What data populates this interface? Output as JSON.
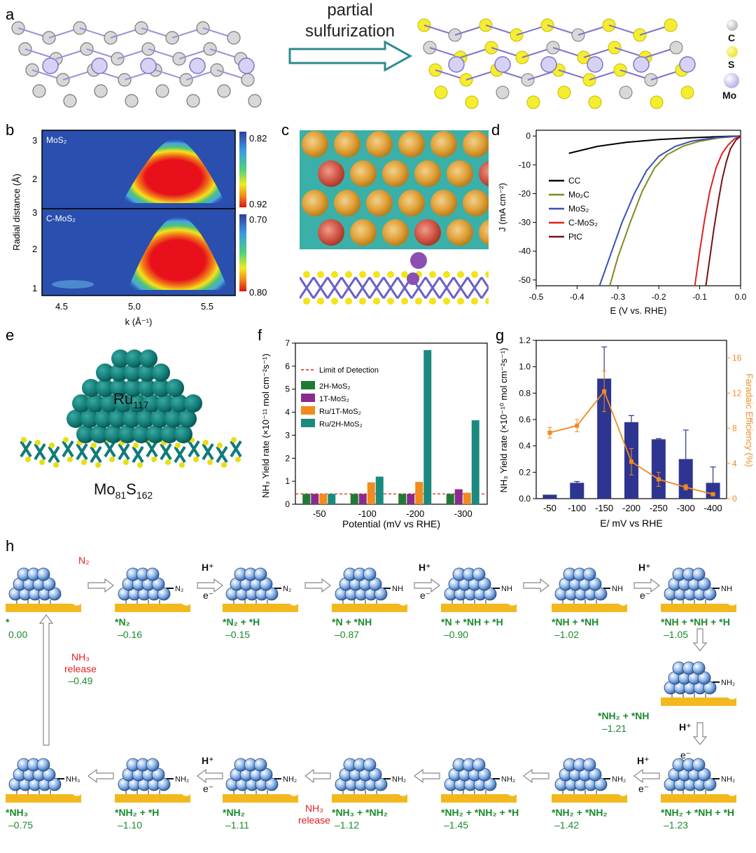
{
  "panel_labels": {
    "a": "a",
    "b": "b",
    "c": "c",
    "d": "d",
    "e": "e",
    "f": "f",
    "g": "g",
    "h": "h"
  },
  "panel_a": {
    "arrow_text_line1": "partial",
    "arrow_text_line2": "sulfurization",
    "legend": [
      {
        "label": "C",
        "color": "#b0b0b0"
      },
      {
        "label": "S",
        "color": "#f2ea1a"
      },
      {
        "label": "Mo",
        "color": "#b9b3e6"
      }
    ]
  },
  "panel_b": {
    "ylabel": "Radial distance (Å)",
    "xlabel": "k (Å⁻¹)",
    "top_label": "MoS₂",
    "bottom_label": "C-MoS₂",
    "x_ticks": [
      "4.5",
      "5.0",
      "5.5"
    ],
    "y_ticks_top": [
      "1",
      "2",
      "3"
    ],
    "y_ticks_bottom": [
      "1",
      "2",
      "3"
    ],
    "colorbar_top": [
      "0.82",
      "0.92"
    ],
    "colorbar_bottom": [
      "0.70",
      "0.80"
    ]
  },
  "chart_data": [
    {
      "type": "line",
      "panel": "d",
      "xlabel": "E (V vs. RHE)",
      "ylabel": "J (mA cm⁻²)",
      "xlim": [
        -0.5,
        0.0
      ],
      "ylim": [
        -52,
        2
      ],
      "x_ticks": [
        "-0.5",
        "-0.4",
        "-0.3",
        "-0.2",
        "-0.1",
        "0.0"
      ],
      "y_ticks": [
        "0",
        "-10",
        "-20",
        "-30",
        "-40",
        "-50"
      ],
      "legend_position": "top-right",
      "series": [
        {
          "name": "CC",
          "color": "#000000",
          "x": [
            -0.42,
            -0.35,
            -0.28,
            -0.2,
            -0.12,
            -0.05,
            0.0
          ],
          "y": [
            -6.0,
            -3.6,
            -2.2,
            -1.2,
            -0.6,
            -0.2,
            0.0
          ]
        },
        {
          "name": "Mo₂C",
          "color": "#7d8c1f",
          "x": [
            -0.32,
            -0.3,
            -0.27,
            -0.24,
            -0.21,
            -0.18,
            -0.14,
            -0.1,
            -0.05,
            0.0
          ],
          "y": [
            -52,
            -42,
            -30,
            -19,
            -11,
            -6.5,
            -3.5,
            -1.8,
            -0.6,
            0.0
          ]
        },
        {
          "name": "MoS₂",
          "color": "#3a4fb5",
          "x": [
            -0.345,
            -0.32,
            -0.29,
            -0.26,
            -0.23,
            -0.2,
            -0.16,
            -0.12,
            -0.06,
            0.0
          ],
          "y": [
            -52,
            -42,
            -30,
            -20,
            -12,
            -7,
            -3.6,
            -1.8,
            -0.5,
            0.0
          ]
        },
        {
          "name": "C-MoS₂",
          "color": "#e02020",
          "x": [
            -0.112,
            -0.1,
            -0.088,
            -0.075,
            -0.06,
            -0.045,
            -0.03,
            -0.015,
            0.0
          ],
          "y": [
            -52,
            -40,
            -29,
            -19,
            -11,
            -6,
            -3,
            -1,
            0.0
          ]
        },
        {
          "name": "PtC",
          "color": "#7a1010",
          "x": [
            -0.085,
            -0.075,
            -0.065,
            -0.055,
            -0.045,
            -0.035,
            -0.025,
            -0.012,
            0.0
          ],
          "y": [
            -52,
            -42,
            -32,
            -23,
            -15,
            -9,
            -4.5,
            -1.5,
            0.0
          ]
        }
      ]
    },
    {
      "type": "bar",
      "panel": "f",
      "xlabel": "Potential (mV vs RHE)",
      "ylabel": "NH₃ Yield rate (×10⁻¹¹ mol cm⁻²s⁻¹)",
      "ylim": [
        0,
        7
      ],
      "categories": [
        "-50",
        "-100",
        "-200",
        "-300"
      ],
      "y_ticks": [
        "0",
        "1",
        "2",
        "3",
        "4",
        "5",
        "6",
        "7"
      ],
      "limit_of_detection": 0.45,
      "limit_label": "Limit of Detection",
      "series": [
        {
          "name": "2H-MoS₂",
          "color": "#1f7a33",
          "values": [
            0.45,
            0.45,
            0.45,
            0.45
          ]
        },
        {
          "name": "1T-MoS₂",
          "color": "#8b2a8e",
          "values": [
            0.45,
            0.45,
            0.45,
            0.65
          ]
        },
        {
          "name": "Ru/1T-MoS₂",
          "color": "#f28a1e",
          "values": [
            0.45,
            0.95,
            0.97,
            0.5
          ]
        },
        {
          "name": "Ru/2H-MoS₂",
          "color": "#1a8a7f",
          "values": [
            0.45,
            1.2,
            6.7,
            3.65
          ]
        }
      ]
    },
    {
      "type": "bar",
      "panel": "g",
      "xlabel": "E/ mV vs RHE",
      "ylabel": "NH₃ Yield rate (×10⁻¹⁰ mol cm⁻²s⁻¹)",
      "ylabel_right": "Faradaic Efficiency (%)",
      "ylim": [
        0,
        1.2
      ],
      "ylim_right": [
        0,
        18
      ],
      "categories": [
        "-50",
        "-100",
        "-150",
        "-200",
        "-250",
        "-300",
        "-400"
      ],
      "y_ticks": [
        "0.0",
        "0.2",
        "0.4",
        "0.6",
        "0.8",
        "1.0",
        "1.2"
      ],
      "y_ticks_right": [
        "0",
        "4",
        "8",
        "12",
        "16"
      ],
      "series": [
        {
          "name": "Yield rate",
          "color": "#2e3590",
          "values": [
            0.03,
            0.12,
            0.91,
            0.58,
            0.45,
            0.3,
            0.12
          ],
          "errors": [
            0.0,
            0.01,
            0.24,
            0.05,
            0.005,
            0.22,
            0.12
          ]
        },
        {
          "name": "Faradaic Efficiency",
          "color": "#f28a1e",
          "axis": "right",
          "values": [
            7.5,
            8.3,
            12.2,
            4.2,
            2.2,
            1.3,
            0.5
          ],
          "errors": [
            0.6,
            0.7,
            2.3,
            1.5,
            0.8,
            0.3,
            0.1
          ]
        }
      ]
    }
  ],
  "panel_e": {
    "cluster_label": "Ru",
    "cluster_sub": "117",
    "support_label": "Mo",
    "support_sub1": "81",
    "support_mid": "S",
    "support_sub2": "162"
  },
  "panel_h": {
    "n2_text": "N₂",
    "h_plus": "H⁺",
    "e_minus": "e⁻",
    "nh3_text": "NH₃",
    "release_text": "release",
    "release_energy_top": "–0.49",
    "stages_row1": [
      {
        "name": "*",
        "energy": "0.00",
        "ads": ""
      },
      {
        "name": "*N₂",
        "energy": "–0.16",
        "ads": "N₂"
      },
      {
        "name": "*N₂ + *H",
        "energy": "–0.15",
        "ads": "N₂"
      },
      {
        "name": "*N + *NH",
        "energy": "–0.87",
        "ads": "NH"
      },
      {
        "name": "*N + *NH + *H",
        "energy": "–0.90",
        "ads": "NH"
      },
      {
        "name": "*NH + *NH",
        "energy": "–1.02",
        "ads": "NH"
      },
      {
        "name": "*NH + *NH + *H",
        "energy": "–1.05",
        "ads": "NH"
      }
    ],
    "stage_mid": {
      "name": "*NH₂ + *NH",
      "energy": "–1.21",
      "ads": "NH₂"
    },
    "stages_row3": [
      {
        "name": "*NH₃",
        "energy": "–0.75",
        "ads": "NH₃"
      },
      {
        "name": "*NH₂ + *H",
        "energy": "–1.10",
        "ads": "NH₂"
      },
      {
        "name": "*NH₂",
        "energy": "–1.11",
        "ads": "NH₂"
      },
      {
        "name": "*NH₃ + *NH₂",
        "energy": "–1.12",
        "ads": "NH₂"
      },
      {
        "name": "*NH₂ + *NH₂ + *H",
        "energy": "–1.45",
        "ads": "NH₂"
      },
      {
        "name": "*NH₂ + *NH₂",
        "energy": "–1.42",
        "ads": "NH₂"
      },
      {
        "name": "*NH₂ + *NH + *H",
        "energy": "–1.23",
        "ads": "NH₂"
      }
    ]
  }
}
